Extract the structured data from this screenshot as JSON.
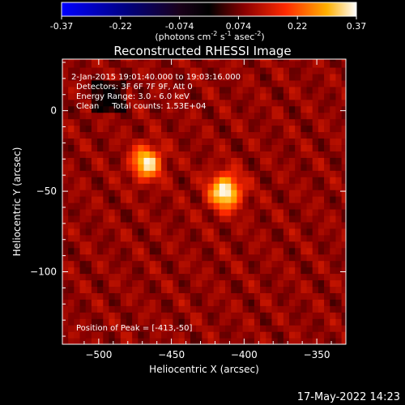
{
  "chart_data": {
    "type": "heatmap",
    "title": "Reconstructed RHESSI Image",
    "xlabel": "Heliocentric X (arcsec)",
    "ylabel": "Heliocentric Y (arcsec)",
    "xlim": [
      -525,
      -330
    ],
    "ylim": [
      -145,
      32
    ],
    "xticks": [
      -500,
      -450,
      -400,
      -350
    ],
    "yticks": [
      0,
      -50,
      -100
    ],
    "colorbar": {
      "min": -0.37,
      "max": 0.37,
      "ticks": [
        "-0.37",
        "-0.22",
        "-0.074",
        "0.074",
        "0.22",
        "0.37"
      ],
      "unit_text": "(photons cm",
      "unit_sup1": "-2",
      "unit_mid1": " s",
      "unit_sup2": "-1",
      "unit_mid2": " asec",
      "unit_sup3": "-2",
      "unit_end": ")"
    },
    "sources": [
      {
        "x": -467,
        "y": -32,
        "peak": 0.34,
        "sigma": 7
      },
      {
        "x": -413,
        "y": -50,
        "peak": 0.37,
        "sigma": 7.5
      }
    ],
    "info_lines": [
      "2-Jan-2015 19:01:40.000 to 19:03:16.000",
      "Detectors: 3F 6F 7F 9F, Att 0",
      "Energy Range: 3.0 - 6.0 keV",
      "Clean     Total counts: 1.53E+04"
    ],
    "peak_text": "Position of Peak = [-413,-50]"
  },
  "footer_timestamp": "17-May-2022 14:23"
}
